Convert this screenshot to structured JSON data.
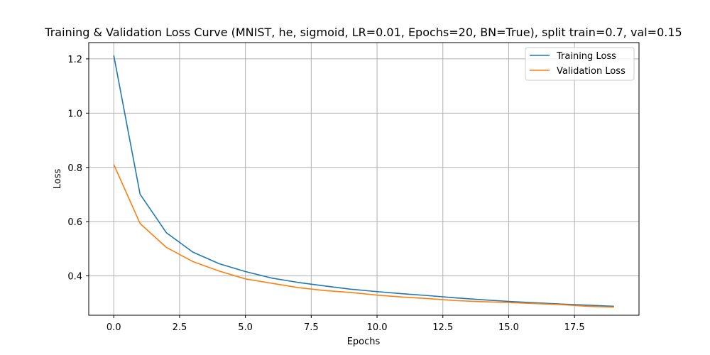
{
  "chart_data": {
    "type": "line",
    "title": "Training & Validation Loss Curve (MNIST, he, sigmoid, LR=0.01, Epochs=20, BN=True), split train=0.7, val=0.15",
    "xlabel": "Epochs",
    "ylabel": "Loss",
    "xlim": [
      -0.95,
      19.95
    ],
    "ylim": [
      0.255,
      1.26
    ],
    "x_ticks": [
      0.0,
      2.5,
      5.0,
      7.5,
      10.0,
      12.5,
      15.0,
      17.5
    ],
    "x_tick_labels": [
      "0.0",
      "2.5",
      "5.0",
      "7.5",
      "10.0",
      "12.5",
      "15.0",
      "17.5"
    ],
    "y_ticks": [
      0.4,
      0.6,
      0.8,
      1.0,
      1.2
    ],
    "y_tick_labels": [
      "0.4",
      "0.6",
      "0.8",
      "1.0",
      "1.2"
    ],
    "grid": true,
    "legend_position": "top-right",
    "x": [
      0,
      1,
      2,
      3,
      4,
      5,
      6,
      7,
      8,
      9,
      10,
      11,
      12,
      13,
      14,
      15,
      16,
      17,
      18,
      19
    ],
    "series": [
      {
        "name": "Training Loss",
        "color": "#1f77b4",
        "values": [
          1.213,
          0.701,
          0.559,
          0.488,
          0.445,
          0.416,
          0.392,
          0.376,
          0.363,
          0.351,
          0.342,
          0.334,
          0.327,
          0.319,
          0.312,
          0.306,
          0.301,
          0.296,
          0.292,
          0.288
        ]
      },
      {
        "name": "Validation Loss",
        "color": "#ff7f0e",
        "values": [
          0.811,
          0.593,
          0.505,
          0.453,
          0.418,
          0.389,
          0.373,
          0.357,
          0.346,
          0.339,
          0.329,
          0.322,
          0.316,
          0.309,
          0.305,
          0.302,
          0.298,
          0.294,
          0.288,
          0.285
        ]
      }
    ]
  }
}
